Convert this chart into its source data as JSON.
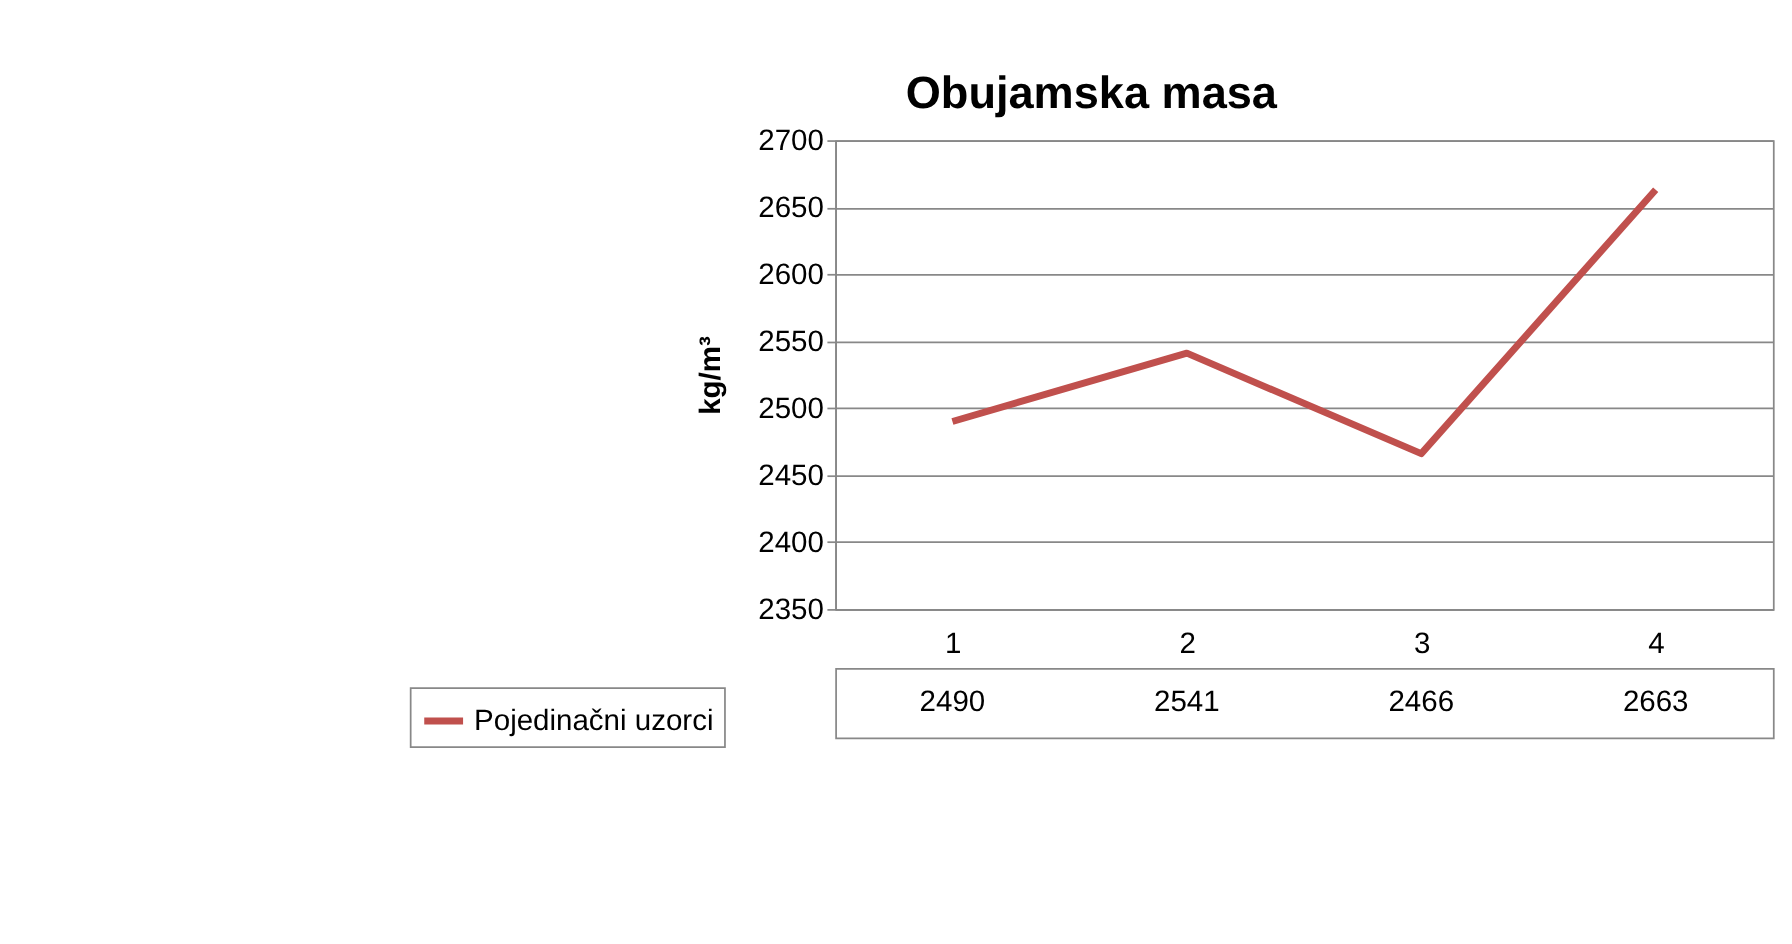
{
  "chart_data": {
    "type": "line",
    "title": "Obujamska masa",
    "ylabel": "kg/m³",
    "categories": [
      "1",
      "2",
      "3",
      "4"
    ],
    "series": [
      {
        "name": "Pojedinačni uzorci",
        "color": "#c0504d",
        "values": [
          2490,
          2541,
          2466,
          2663
        ]
      }
    ],
    "ylim": [
      2350,
      2700
    ],
    "yticks": [
      2350,
      2400,
      2450,
      2500,
      2550,
      2600,
      2650,
      2700
    ],
    "grid": "y",
    "legend": "bottom",
    "data_labels": true,
    "marker": "none"
  }
}
